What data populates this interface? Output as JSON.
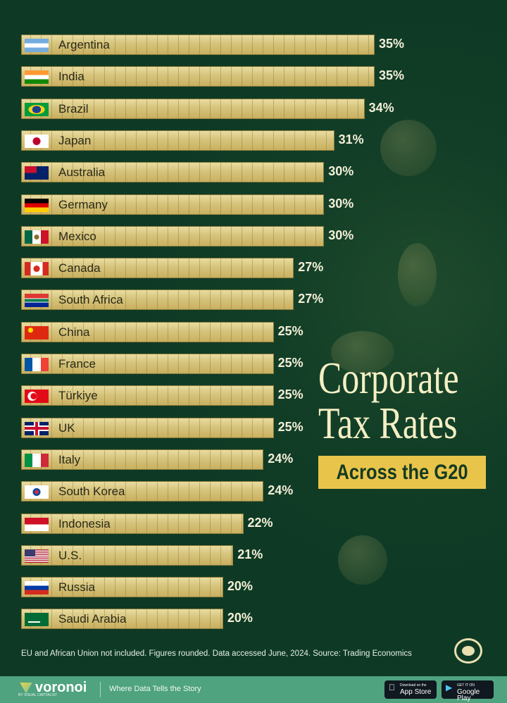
{
  "chart_data": {
    "type": "bar",
    "orientation": "horizontal",
    "title": "Corporate Tax Rates",
    "subtitle": "Across the G20",
    "categories": [
      "Argentina",
      "India",
      "Brazil",
      "Japan",
      "Australia",
      "Germany",
      "Mexico",
      "Canada",
      "South Africa",
      "China",
      "France",
      "Türkiye",
      "UK",
      "Italy",
      "South Korea",
      "Indonesia",
      "U.S.",
      "Russia",
      "Saudi Arabia"
    ],
    "values": [
      35,
      35,
      34,
      31,
      30,
      30,
      30,
      27,
      27,
      25,
      25,
      25,
      25,
      24,
      24,
      22,
      21,
      20,
      20
    ],
    "value_labels": [
      "35%",
      "35%",
      "34%",
      "31%",
      "30%",
      "30%",
      "30%",
      "27%",
      "27%",
      "25%",
      "25%",
      "25%",
      "25%",
      "24%",
      "24%",
      "22%",
      "21%",
      "20%",
      "20%"
    ],
    "unit": "%",
    "xlim": [
      0,
      35
    ],
    "grid": false,
    "legend": "none",
    "colors": {
      "bar": "#d6c47c",
      "background": "#0e3a25",
      "title": "#f5efc4",
      "subtitle_box": "#e8c54a"
    }
  },
  "flags": [
    "argentina-flag",
    "india-flag",
    "brazil-flag",
    "japan-flag",
    "australia-flag",
    "germany-flag",
    "mexico-flag",
    "canada-flag",
    "south-africa-flag",
    "china-flag",
    "france-flag",
    "turkiye-flag",
    "uk-flag",
    "italy-flag",
    "south-korea-flag",
    "indonesia-flag",
    "us-flag",
    "russia-flag",
    "saudi-arabia-flag"
  ],
  "note": "EU and African Union not included. Figures rounded. Data accessed June, 2024. Source: Trading Economics",
  "footer": {
    "brand": "voronoi",
    "brand_by": "BY VISUAL CAPITALIST",
    "tagline": "Where Data Tells the Story",
    "app_store_small": "Download on the",
    "app_store": "App Store",
    "google_play_small": "GET IT ON",
    "google_play": "Google Play"
  }
}
